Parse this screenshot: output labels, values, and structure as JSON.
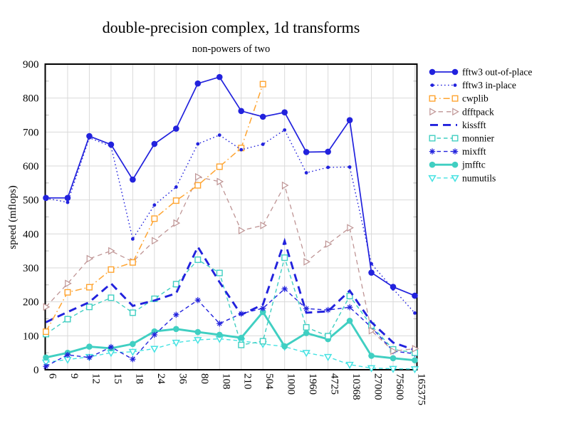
{
  "chart_data": {
    "type": "line",
    "title": "double-precision complex, 1d transforms",
    "subtitle": "non-powers of two",
    "xlabel": "",
    "ylabel": "speed (mflops)",
    "ylim": [
      0,
      900
    ],
    "yticks": [
      0,
      100,
      200,
      300,
      400,
      500,
      600,
      700,
      800,
      900
    ],
    "grid": true,
    "legend_position": "right-outside",
    "categories": [
      "6",
      "9",
      "12",
      "15",
      "18",
      "24",
      "36",
      "80",
      "108",
      "210",
      "504",
      "1000",
      "1960",
      "4725",
      "10368",
      "27000",
      "75600",
      "165375"
    ],
    "series": [
      {
        "name": "fftw3 out-of-place",
        "color": "#2222dd",
        "line": "solid",
        "width": 1.7,
        "marker": "dot",
        "values": [
          506,
          506,
          688,
          663,
          560,
          665,
          710,
          843,
          862,
          762,
          745,
          758,
          641,
          642,
          735,
          286,
          244,
          218
        ]
      },
      {
        "name": "fftw3 in-place",
        "color": "#2222dd",
        "line": "dotted",
        "width": 1.4,
        "marker": "dot-small",
        "values": [
          505,
          493,
          683,
          658,
          385,
          485,
          538,
          665,
          691,
          648,
          664,
          706,
          580,
          596,
          597,
          312,
          238,
          167
        ]
      },
      {
        "name": "cwplib",
        "color": "#ffa430",
        "line": "dashdot",
        "width": 1.5,
        "marker": "square-open",
        "values": [
          112,
          228,
          243,
          295,
          316,
          445,
          498,
          543,
          598,
          653,
          841,
          null,
          null,
          null,
          null,
          null,
          null,
          null
        ]
      },
      {
        "name": "dfftpack",
        "color": "#bf9595",
        "line": "dashed",
        "width": 1.3,
        "marker": "triangle-right",
        "values": [
          185,
          254,
          327,
          350,
          318,
          380,
          432,
          568,
          554,
          410,
          425,
          543,
          318,
          370,
          418,
          115,
          55,
          62
        ]
      },
      {
        "name": "kissfft",
        "color": "#2222dd",
        "line": "long-dash",
        "width": 2.9,
        "marker": "none",
        "values": [
          140,
          170,
          199,
          254,
          188,
          204,
          225,
          362,
          258,
          162,
          192,
          379,
          168,
          172,
          233,
          140,
          80,
          58
        ]
      },
      {
        "name": "monnier",
        "color": "#40cfc2",
        "line": "short-dash",
        "width": 1.4,
        "marker": "square-open",
        "values": [
          105,
          149,
          185,
          212,
          168,
          209,
          252,
          324,
          285,
          73,
          84,
          330,
          125,
          99,
          217,
          130,
          60,
          50
        ]
      },
      {
        "name": "mixfft",
        "color": "#2222dd",
        "line": "short-dash",
        "width": 1.4,
        "marker": "star",
        "values": [
          10,
          44,
          36,
          67,
          31,
          103,
          162,
          205,
          136,
          165,
          181,
          238,
          180,
          176,
          184,
          125,
          55,
          47
        ]
      },
      {
        "name": "jmfftc",
        "color": "#40cfc2",
        "line": "solid",
        "width": 2.9,
        "marker": "dot",
        "values": [
          36,
          50,
          68,
          63,
          76,
          113,
          120,
          111,
          103,
          94,
          170,
          69,
          108,
          90,
          144,
          41,
          34,
          28
        ]
      },
      {
        "name": "numutils",
        "color": "#45e2e2",
        "line": "short-dash",
        "width": 1.4,
        "marker": "triangle-down",
        "values": [
          22,
          30,
          38,
          50,
          53,
          62,
          80,
          88,
          91,
          85,
          76,
          68,
          50,
          38,
          15,
          5,
          3,
          2
        ]
      }
    ]
  }
}
